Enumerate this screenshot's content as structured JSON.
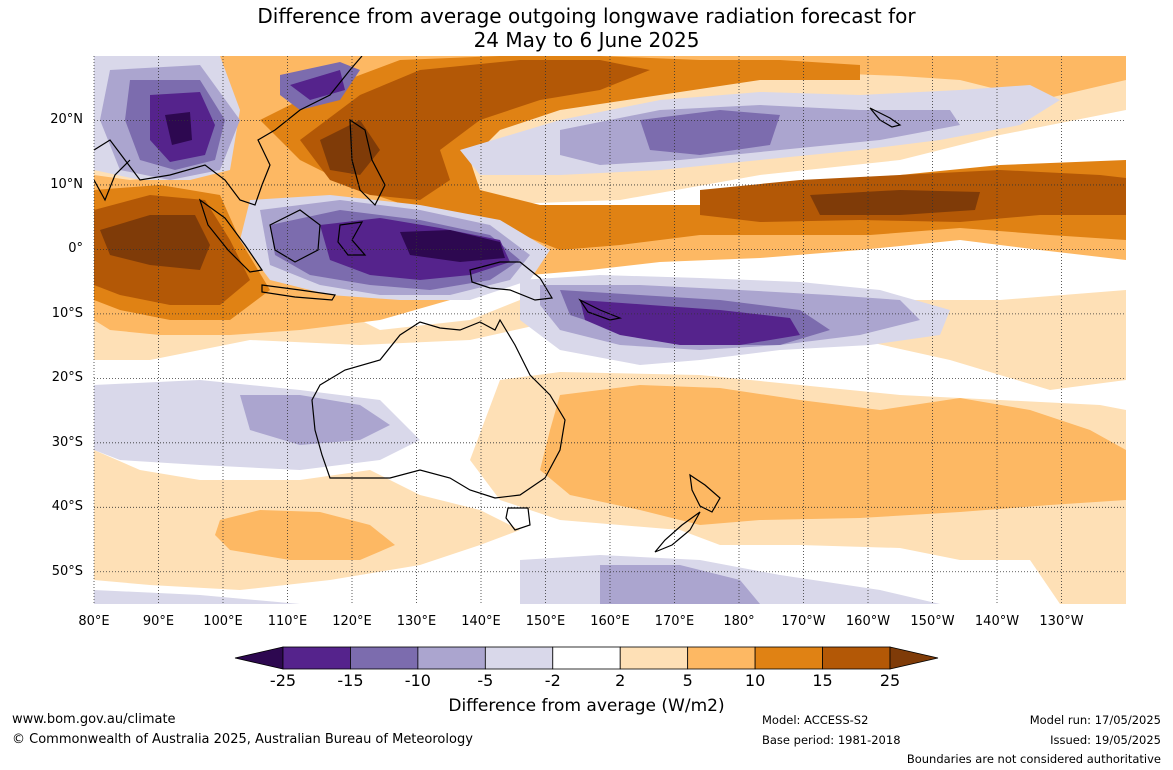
{
  "title": {
    "line1": "Difference from average outgoing longwave radiation forecast for",
    "line2": "24 May to 6 June 2025"
  },
  "map": {
    "lat_labels": [
      "20°N",
      "10°N",
      "0°",
      "10°S",
      "20°S",
      "30°S",
      "40°S",
      "50°S"
    ],
    "lat_values": [
      20,
      10,
      0,
      -10,
      -20,
      -30,
      -40,
      -50
    ],
    "lon_labels": [
      "80°E",
      "90°E",
      "100°E",
      "110°E",
      "120°E",
      "130°E",
      "140°E",
      "150°E",
      "160°E",
      "170°E",
      "180°",
      "170°W",
      "160°W",
      "150°W",
      "140°W",
      "130°W"
    ],
    "lon_values": [
      80,
      90,
      100,
      110,
      120,
      130,
      140,
      150,
      160,
      170,
      180,
      190,
      200,
      210,
      220,
      230
    ],
    "lon_range": [
      80,
      240
    ],
    "lat_range": [
      -55,
      30
    ],
    "land_outline_color": "#000000",
    "grid": true
  },
  "colorbar": {
    "ticks": [
      "-25",
      "-15",
      "-10",
      "-5",
      "-2",
      "2",
      "5",
      "10",
      "15",
      "25"
    ],
    "colors": [
      "#2d0850",
      "#55238c",
      "#7c6cae",
      "#aba5cf",
      "#d9d8ea",
      "#ffffff",
      "#fee0b6",
      "#fdb863",
      "#e08214",
      "#b35806",
      "#7f3b08"
    ],
    "label": "Difference from average (W/m2)"
  },
  "footer": {
    "url": "www.bom.gov.au/climate",
    "copyright": "© Commonwealth of Australia 2025, Australian Bureau of Meteorology",
    "model": "Model: ACCESS-S2",
    "base_period": "Base period: 1981-2018",
    "model_run": "Model run: 17/05/2025",
    "issued": "Issued: 19/05/2025",
    "disclaimer": "Boundaries are not considered authoritative"
  }
}
